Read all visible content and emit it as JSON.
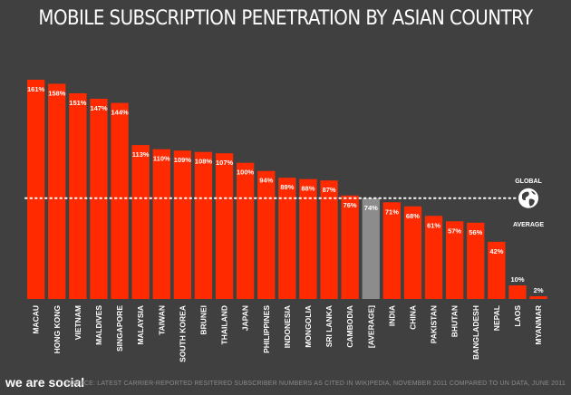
{
  "chart_data": {
    "type": "bar",
    "title": "MOBILE SUBSCRIPTION PENETRATION BY ASIAN COUNTRY",
    "categories": [
      "MACAU",
      "HONG KONG",
      "VIETNAM",
      "MALDIVES",
      "SINGAPORE",
      "MALAYSIA",
      "TAIWAN",
      "SOUTH KOREA",
      "BRUNEI",
      "THAILAND",
      "JAPAN",
      "PHILIPPINES",
      "INDONESIA",
      "MONGOLIA",
      "SRI LANKA",
      "CAMBODIA",
      "[AVERAGE]",
      "INDIA",
      "CHINA",
      "PAKISTAN",
      "BHUTAN",
      "BANGLADESH",
      "NEPAL",
      "LAOS",
      "MYANMAR"
    ],
    "values": [
      161,
      158,
      151,
      147,
      144,
      113,
      110,
      109,
      108,
      107,
      100,
      94,
      89,
      88,
      87,
      76,
      74,
      71,
      68,
      61,
      57,
      56,
      42,
      10,
      2
    ],
    "value_labels": [
      "161%",
      "158%",
      "151%",
      "147%",
      "144%",
      "113%",
      "110%",
      "109%",
      "108%",
      "107%",
      "100%",
      "94%",
      "89%",
      "88%",
      "87%",
      "76%",
      "74%",
      "71%",
      "68%",
      "61%",
      "57%",
      "56%",
      "42%",
      "10%",
      "2%"
    ],
    "highlight_category": "[AVERAGE]",
    "reference_line": {
      "value": 74,
      "style": "dotted",
      "label_top": "GLOBAL",
      "label_bottom": "AVERAGE",
      "icon": "globe-icon"
    },
    "ylim": [
      0,
      170
    ],
    "xlabel": "",
    "ylabel": "",
    "grid": false,
    "legend": "none",
    "colors": {
      "bar": "#ff2a00",
      "highlight": "#8c8c8c",
      "background": "#404040",
      "text": "#ffffff",
      "source_text": "#8a8a8a"
    }
  },
  "footer": {
    "brand": "we are social",
    "source": "SOURCE: LATEST CARRIER-REPORTED RESITERED SUBSCRIBER NUMBERS AS CITED IN WIKIPEDIA, NOVEMBER 2011 COMPARED TO UN DATA, JUNE 2011"
  }
}
